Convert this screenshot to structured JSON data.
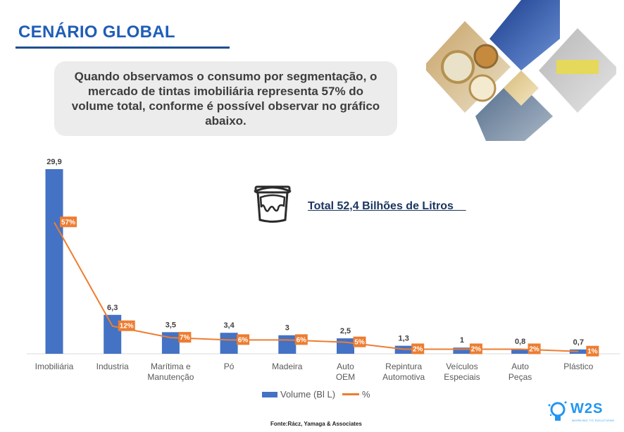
{
  "header": {
    "title": "CENÁRIO GLOBAL"
  },
  "callout": {
    "text": "Quando observamos o consumo por segmentação, o mercado de tintas imobiliária representa 57% do volume total, conforme é possível observar no gráfico abaixo."
  },
  "total": {
    "text": "Total 52,4 Bilhões de Litros    ",
    "icon": "paint-bucket-icon"
  },
  "legend": {
    "volume_label": "Volume (Bl L)",
    "percent_label": "%"
  },
  "source": "Fonte:Rácz, Yamaga & Associates",
  "logo": {
    "text": "W2S",
    "sub": "WORKING TO SOLUTIONS",
    "icon": "lightbulb-icon"
  },
  "colors": {
    "bar": "#4472c4",
    "line": "#ed7d31",
    "title": "#1f5db8"
  },
  "chart_data": {
    "type": "bar",
    "categories": [
      "Imobiliária",
      "Industria",
      "Marítima e Manutenção",
      "Pó",
      "Madeira",
      "Auto OEM",
      "Repintura Automotiva",
      "Veículos Especiais",
      "Auto Peças",
      "Plástico"
    ],
    "category_lines": [
      [
        "Imobiliária"
      ],
      [
        "Industria"
      ],
      [
        "Marítima e",
        "Manutenção"
      ],
      [
        "Pó"
      ],
      [
        "Madeira"
      ],
      [
        "Auto",
        "OEM"
      ],
      [
        "Repintura",
        "Automotiva"
      ],
      [
        "Veículos",
        "Especiais"
      ],
      [
        "Auto",
        "Peças"
      ],
      [
        "Plástico"
      ]
    ],
    "series": [
      {
        "name": "Volume (Bl L)",
        "type": "bar",
        "values": [
          29.9,
          6.3,
          3.5,
          3.4,
          3,
          2.5,
          1.3,
          1,
          0.8,
          0.7
        ],
        "labels": [
          "29,9",
          "6,3",
          "3,5",
          "3,4",
          "3",
          "2,5",
          "1,3",
          "1",
          "0,8",
          "0,7"
        ]
      },
      {
        "name": "%",
        "type": "line",
        "values": [
          57,
          12,
          7,
          6,
          6,
          5,
          2,
          2,
          2,
          1
        ],
        "labels": [
          "57%",
          "12%",
          "7%",
          "6%",
          "6%",
          "5%",
          "2%",
          "2%",
          "2%",
          "1%"
        ]
      }
    ],
    "ylim": [
      0,
      29.9
    ],
    "y2lim": [
      0,
      80
    ],
    "grid": false,
    "legend": "bottom"
  }
}
